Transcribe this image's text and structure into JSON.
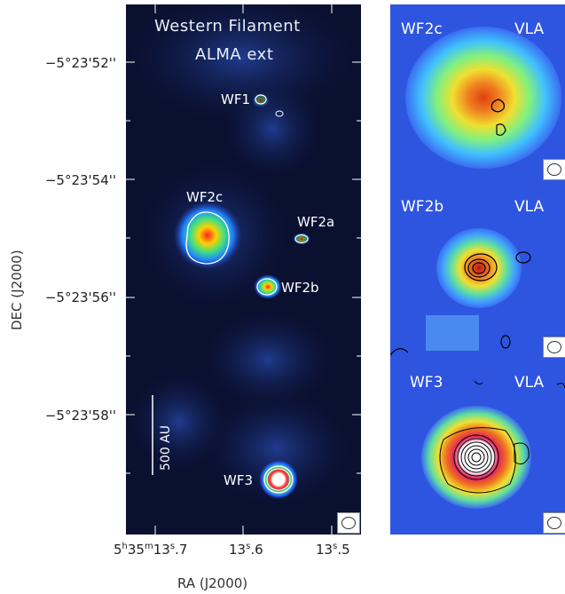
{
  "main": {
    "title_line1": "Western Filament",
    "title_line2": "ALMA ext",
    "sources": [
      {
        "id": "wf1",
        "label": "WF1"
      },
      {
        "id": "wf2c",
        "label": "WF2c"
      },
      {
        "id": "wf2a",
        "label": "WF2a"
      },
      {
        "id": "wf2b",
        "label": "WF2b"
      },
      {
        "id": "wf3",
        "label": "WF3"
      }
    ],
    "scalebar": "500 AU"
  },
  "axes": {
    "dec_ticks": [
      "−5°23'52''",
      "−5°23'54''",
      "−5°23'56''",
      "−5°23'58''"
    ],
    "ra_ticks": {
      "first_h": "5",
      "first_m": "35",
      "first_s": "13",
      "first_frac": ".7",
      "t2_s": "13",
      "t2_frac": ".6",
      "t3_s": "13",
      "t3_frac": ".5"
    },
    "ylabel": "DEC (J2000)",
    "xlabel": "RA (J2000)"
  },
  "insets": [
    {
      "name": "WF2c",
      "instrument": "VLA"
    },
    {
      "name": "WF2b",
      "instrument": "VLA"
    },
    {
      "name": "WF3",
      "instrument": "VLA"
    }
  ],
  "colors": {
    "map_background": "#0a1030",
    "inset_background": "#3b6cf0",
    "contour_main": "#ffffff",
    "contour_inset": "#000000"
  }
}
